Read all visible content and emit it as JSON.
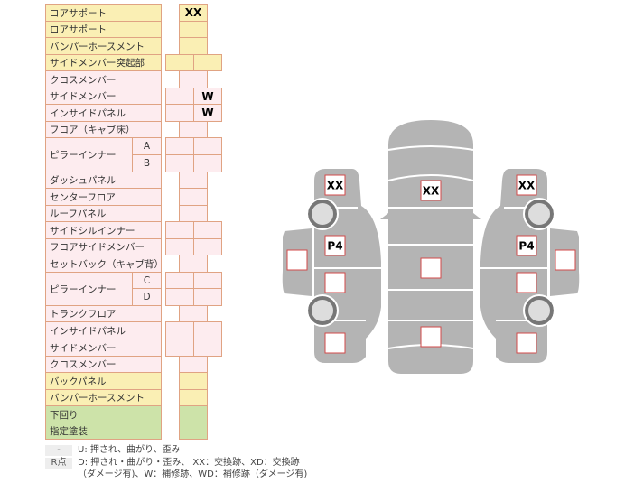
{
  "table": {
    "rows": [
      {
        "label": "コアサポート",
        "color": "yellow",
        "cols": 1,
        "values": [
          "XX"
        ]
      },
      {
        "label": "ロアサポート",
        "color": "yellow",
        "cols": 1,
        "values": [
          ""
        ]
      },
      {
        "label": "バンパーホースメント",
        "color": "yellow",
        "cols": 1,
        "values": [
          ""
        ]
      },
      {
        "label": "サイドメンバー突起部",
        "color": "yellow",
        "cols": 2,
        "values": [
          "",
          ""
        ]
      },
      {
        "label": "クロスメンバー",
        "color": "pink",
        "cols": 1,
        "values": [
          ""
        ]
      },
      {
        "label": "サイドメンバー",
        "color": "pink",
        "cols": 2,
        "values": [
          "",
          "W"
        ]
      },
      {
        "label": "インサイドパネル",
        "color": "pink",
        "cols": 2,
        "values": [
          "",
          "W"
        ]
      },
      {
        "label": "フロア（キャブ床）",
        "color": "pink",
        "cols": 1,
        "values": [
          ""
        ]
      },
      {
        "label": "ピラーインナー",
        "sub": "A",
        "color": "pink",
        "cols": 2,
        "values": [
          "",
          ""
        ]
      },
      {
        "label": "",
        "sub": "B",
        "color": "pink",
        "cols": 2,
        "values": [
          "",
          ""
        ]
      },
      {
        "label": "ダッシュパネル",
        "color": "pink",
        "cols": 1,
        "values": [
          ""
        ]
      },
      {
        "label": "センターフロア",
        "color": "pink",
        "cols": 1,
        "values": [
          ""
        ]
      },
      {
        "label": "ルーフパネル",
        "color": "pink",
        "cols": 1,
        "values": [
          ""
        ]
      },
      {
        "label": "サイドシルインナー",
        "color": "pink",
        "cols": 2,
        "values": [
          "",
          ""
        ]
      },
      {
        "label": "フロアサイドメンバー",
        "color": "pink",
        "cols": 2,
        "values": [
          "",
          ""
        ]
      },
      {
        "label": "セットバック（キャブ背）",
        "color": "pink",
        "cols": 1,
        "values": [
          ""
        ]
      },
      {
        "label": "ピラーインナー",
        "sub": "C",
        "color": "pink",
        "cols": 2,
        "values": [
          "",
          ""
        ]
      },
      {
        "label": "",
        "sub": "D",
        "color": "pink",
        "cols": 2,
        "values": [
          "",
          ""
        ]
      },
      {
        "label": "トランクフロア",
        "color": "pink",
        "cols": 1,
        "values": [
          ""
        ]
      },
      {
        "label": "インサイドパネル",
        "color": "pink",
        "cols": 2,
        "values": [
          "",
          ""
        ]
      },
      {
        "label": "サイドメンバー",
        "color": "pink",
        "cols": 2,
        "values": [
          "",
          ""
        ]
      },
      {
        "label": "クロスメンバー",
        "color": "pink",
        "cols": 1,
        "values": [
          ""
        ]
      },
      {
        "label": "バックパネル",
        "color": "yellow",
        "cols": 1,
        "values": [
          ""
        ]
      },
      {
        "label": "バンパーホースメント",
        "color": "yellow",
        "cols": 1,
        "values": [
          ""
        ]
      },
      {
        "label": "下回り",
        "color": "green",
        "cols": 1,
        "values": [
          ""
        ]
      },
      {
        "label": "指定塗装",
        "color": "green",
        "cols": 1,
        "values": [
          ""
        ]
      }
    ]
  },
  "diagram": {
    "left": {
      "front": "XX",
      "door_front": "P4",
      "door_rear": "",
      "rear": "",
      "side": ""
    },
    "center": {
      "hood": "XX",
      "roof": "",
      "trunk": ""
    },
    "right": {
      "front": "XX",
      "door_front": "P4",
      "door_rear": "",
      "rear": "",
      "side": ""
    }
  },
  "legend": {
    "items": [
      {
        "key": "-",
        "text": "U: 押され、曲がり、歪み"
      },
      {
        "key": "R点",
        "text": "D: 押され・曲がり・歪み、 XX：交換跡、XD：交換跡"
      },
      {
        "key": "",
        "text": "（ダメージ有)、W：補修跡、WD：補修跡（ダメージ有)"
      }
    ]
  },
  "colors": {
    "yellow": "#faefb4",
    "pink": "#fdecef",
    "green": "#cde3a9",
    "border": "#e0a383",
    "car": "#b4b4b4",
    "box_border": "#d24a4a"
  }
}
